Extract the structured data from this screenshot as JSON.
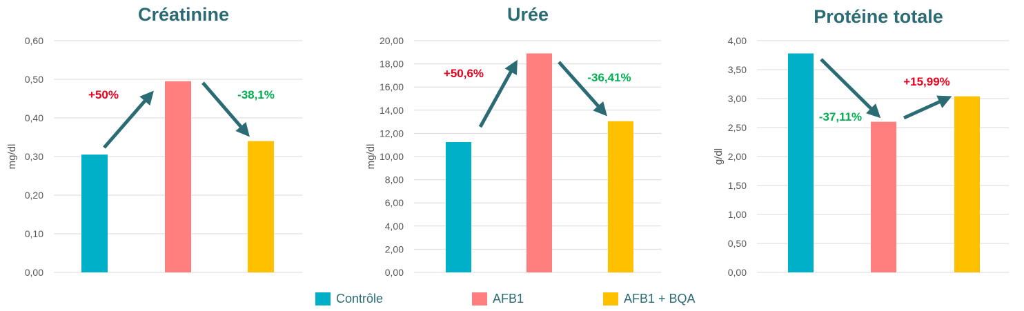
{
  "colors": {
    "title": "#2b6b73",
    "arrow": "#2b6b73",
    "increase": "#e8001c",
    "decrease": "#00b050",
    "controle": "#00b0c8",
    "afb1": "#ff7f7f",
    "afb1_bqa": "#ffc000"
  },
  "legend": [
    {
      "label": "Contrôle",
      "color": "#00b0c8"
    },
    {
      "label": "AFB1",
      "color": "#ff7f7f"
    },
    {
      "label": "AFB1 + BQA",
      "color": "#ffc000"
    }
  ],
  "chart_data": [
    {
      "type": "bar",
      "title": "Créatinine",
      "ylabel": "mg/dl",
      "categories": [
        "Contrôle",
        "AFB1",
        "AFB1 + BQA"
      ],
      "values": [
        0.305,
        0.495,
        0.34
      ],
      "ylim": [
        0,
        0.6
      ],
      "ticks": [
        "0,00",
        "0,10",
        "0,20",
        "0,30",
        "0,40",
        "0,50",
        "0,60"
      ],
      "grid": true,
      "annotations": [
        {
          "text": "+50%",
          "from": 0,
          "to": 1,
          "direction": "up"
        },
        {
          "text": "-38,1%",
          "from": 1,
          "to": 2,
          "direction": "down"
        }
      ]
    },
    {
      "type": "bar",
      "title": "Urée",
      "ylabel": "mg/dl",
      "categories": [
        "Contrôle",
        "AFB1",
        "AFB1 + BQA"
      ],
      "values": [
        11.25,
        18.9,
        13.05
      ],
      "ylim": [
        0,
        20
      ],
      "ticks": [
        "0,00",
        "2,00",
        "4,00",
        "6,00",
        "8,00",
        "10,00",
        "12,00",
        "14,00",
        "16,00",
        "18,00",
        "20,00"
      ],
      "grid": true,
      "annotations": [
        {
          "text": "+50,6%",
          "from": 0,
          "to": 1,
          "direction": "up"
        },
        {
          "text": "-36,41%",
          "from": 1,
          "to": 2,
          "direction": "down"
        }
      ]
    },
    {
      "type": "bar",
      "title": "Protéine totale",
      "ylabel": "g/dl",
      "categories": [
        "Contrôle",
        "AFB1",
        "AFB1 + BQA"
      ],
      "values": [
        3.78,
        2.6,
        3.04
      ],
      "ylim": [
        0,
        4
      ],
      "ticks": [
        "0,00",
        "0,50",
        "1,00",
        "1,50",
        "2,00",
        "2,50",
        "3,00",
        "3,50",
        "4,00"
      ],
      "grid": true,
      "annotations": [
        {
          "text": "-37,11%",
          "from": 0,
          "to": 1,
          "direction": "down"
        },
        {
          "text": "+15,99%",
          "from": 1,
          "to": 2,
          "direction": "up"
        }
      ]
    }
  ]
}
